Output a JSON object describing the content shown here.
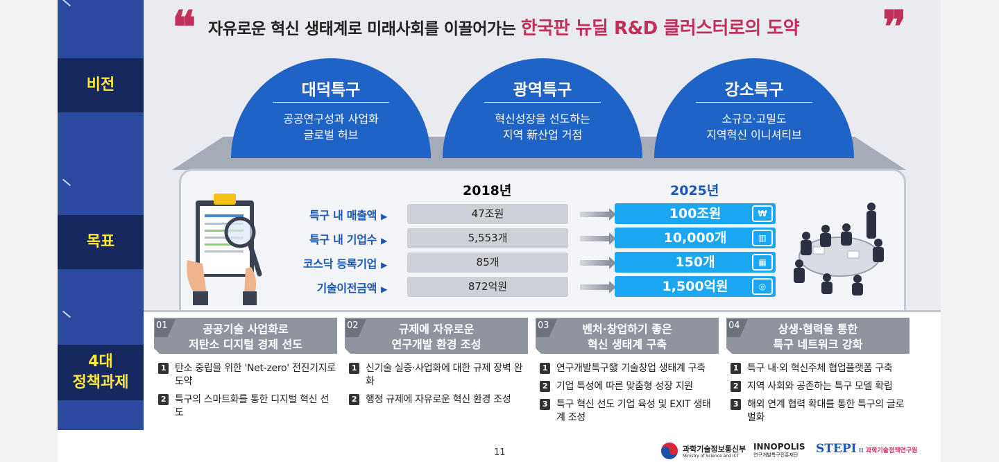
{
  "headline": {
    "lead": "자유로운 혁신 생태계로 미래사회를 이끌어가는",
    "accent": "한국판 뉴딜 R&D 클러스터로의 도약",
    "open_quote": "❝",
    "close_quote": "❞"
  },
  "sidebar": {
    "vision": "비전",
    "goals": "목표",
    "tasks_line1": "4대",
    "tasks_line2": "정책과제"
  },
  "vision": [
    {
      "title": "대덕특구",
      "line1": "공공연구성과 사업화",
      "line2": "글로벌 허브"
    },
    {
      "title": "광역특구",
      "line1": "혁신성장을 선도하는",
      "line2": "지역 新산업 거점"
    },
    {
      "title": "강소특구",
      "line1": "소규모·고밀도",
      "line2": "지역혁신 이니셔티브"
    }
  ],
  "goals": {
    "year_from": "2018년",
    "year_to": "2025년",
    "rows": [
      {
        "label": "특구 내 매출액",
        "v2018": "47조원",
        "v2025": "100조원",
        "icon": "money-bag-icon",
        "glyph": "₩"
      },
      {
        "label": "특구 내 기업수",
        "v2018": "5,553개",
        "v2025": "10,000개",
        "icon": "building-icon",
        "glyph": "▥"
      },
      {
        "label": "코스닥 등록기업",
        "v2018": "85개",
        "v2025": "150개",
        "icon": "office-icon",
        "glyph": "▦"
      },
      {
        "label": "기술이전금액",
        "v2018": "872억원",
        "v2025": "1,500억원",
        "icon": "cash-icon",
        "glyph": "◎"
      }
    ]
  },
  "tasks": [
    {
      "num": "01",
      "title1": "공공기술 사업화로",
      "title2": "저탄소 디지털 경제 선도",
      "items": [
        {
          "n": "1",
          "text": "탄소 중립을 위한 'Net-zero' 전진기지로 도약"
        },
        {
          "n": "2",
          "text": "특구의 스마트화를 통한 디지털 혁신 선도"
        }
      ]
    },
    {
      "num": "02",
      "title1": "규제에 자유로운",
      "title2": "연구개발 환경 조성",
      "items": [
        {
          "n": "1",
          "text": "신기술 실증·사업화에 대한 규제 장벽 완화"
        },
        {
          "n": "2",
          "text": "행정 규제에 자유로운 혁신 환경 조성"
        }
      ]
    },
    {
      "num": "03",
      "title1": "벤처·창업하기 좋은",
      "title2": "혁신 생태계 구축",
      "items": [
        {
          "n": "1",
          "text": "연구개발특구發 기술창업 생태계 구축"
        },
        {
          "n": "2",
          "text": "기업 특성에 따른 맞춤형 성장 지원"
        },
        {
          "n": "3",
          "text": "특구 혁신 선도 기업 육성 및 EXIT 생태계 조성"
        }
      ]
    },
    {
      "num": "04",
      "title1": "상생·협력을 통한",
      "title2": "특구 네트워크 강화",
      "items": [
        {
          "n": "1",
          "text": "특구 내·외 혁신주체 협업플랫폼 구축"
        },
        {
          "n": "2",
          "text": "지역 사회와 공존하는 특구 모델 확립"
        },
        {
          "n": "3",
          "text": "해외 연계 협력 확대를 통한 특구의 글로벌화"
        }
      ]
    }
  ],
  "footer": {
    "page": "11",
    "logo1_kr": "과학기술정보통신부",
    "logo1_en": "Ministry of Science and ICT",
    "logo2": "INNOPOLIS",
    "logo2_sub": "연구개발특구진흥재단",
    "logo3": "STEPI",
    "logo3_kr": "과학기술정책연구원"
  },
  "colors": {
    "accent": "#c0305a",
    "blue": "#1f63c6",
    "cyan": "#1aa6f0",
    "navy": "#16295e",
    "sidebar": "#2a4aa0",
    "yellow": "#ffe83a"
  }
}
